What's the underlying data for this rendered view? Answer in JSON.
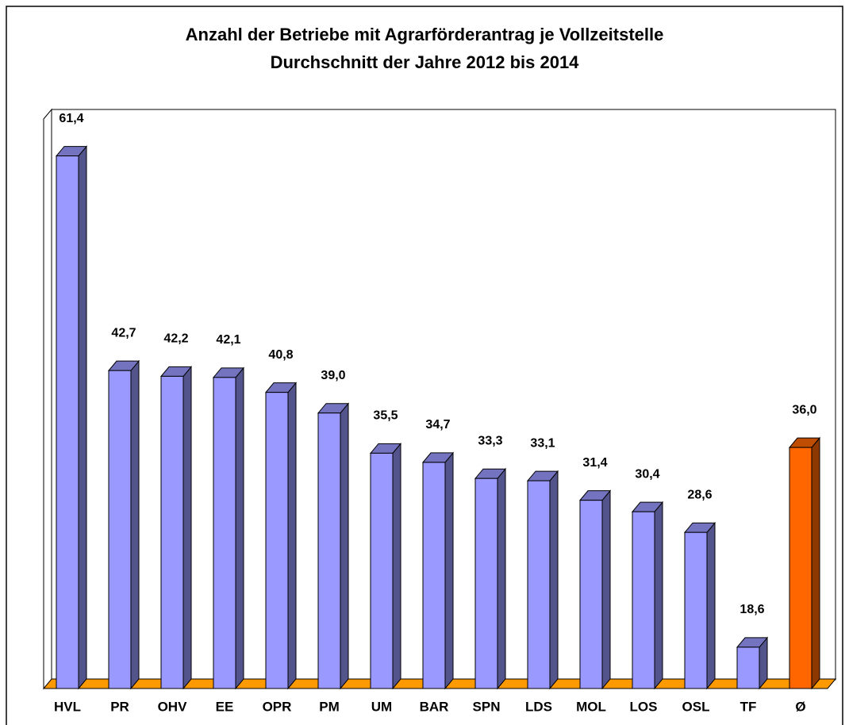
{
  "chart_data": {
    "type": "bar3d",
    "title": [
      "Anzahl der Betriebe mit Agrarförderantrag je Vollzeitstelle",
      "Durchschnitt der Jahre 2012 bis 2014"
    ],
    "categories": [
      "HVL",
      "PR",
      "OHV",
      "EE",
      "OPR",
      "PM",
      "UM",
      "BAR",
      "SPN",
      "LDS",
      "MOL",
      "LOS",
      "OSL",
      "TF",
      "Ø"
    ],
    "values": [
      61.4,
      42.7,
      42.2,
      42.1,
      40.8,
      39.0,
      35.5,
      34.7,
      33.3,
      33.1,
      31.4,
      30.4,
      28.6,
      18.6,
      36.0
    ],
    "value_labels": [
      "61,4",
      "42,7",
      "42,2",
      "42,1",
      "40,8",
      "39,0",
      "35,5",
      "34,7",
      "33,3",
      "33,1",
      "31,4",
      "30,4",
      "28,6",
      "18,6",
      "36,0"
    ],
    "colors": [
      "#9999ff",
      "#9999ff",
      "#9999ff",
      "#9999ff",
      "#9999ff",
      "#9999ff",
      "#9999ff",
      "#9999ff",
      "#9999ff",
      "#9999ff",
      "#9999ff",
      "#9999ff",
      "#9999ff",
      "#9999ff",
      "#ff6600"
    ],
    "floor_color": "#ff9900",
    "ylim": [
      15,
      66
    ]
  }
}
